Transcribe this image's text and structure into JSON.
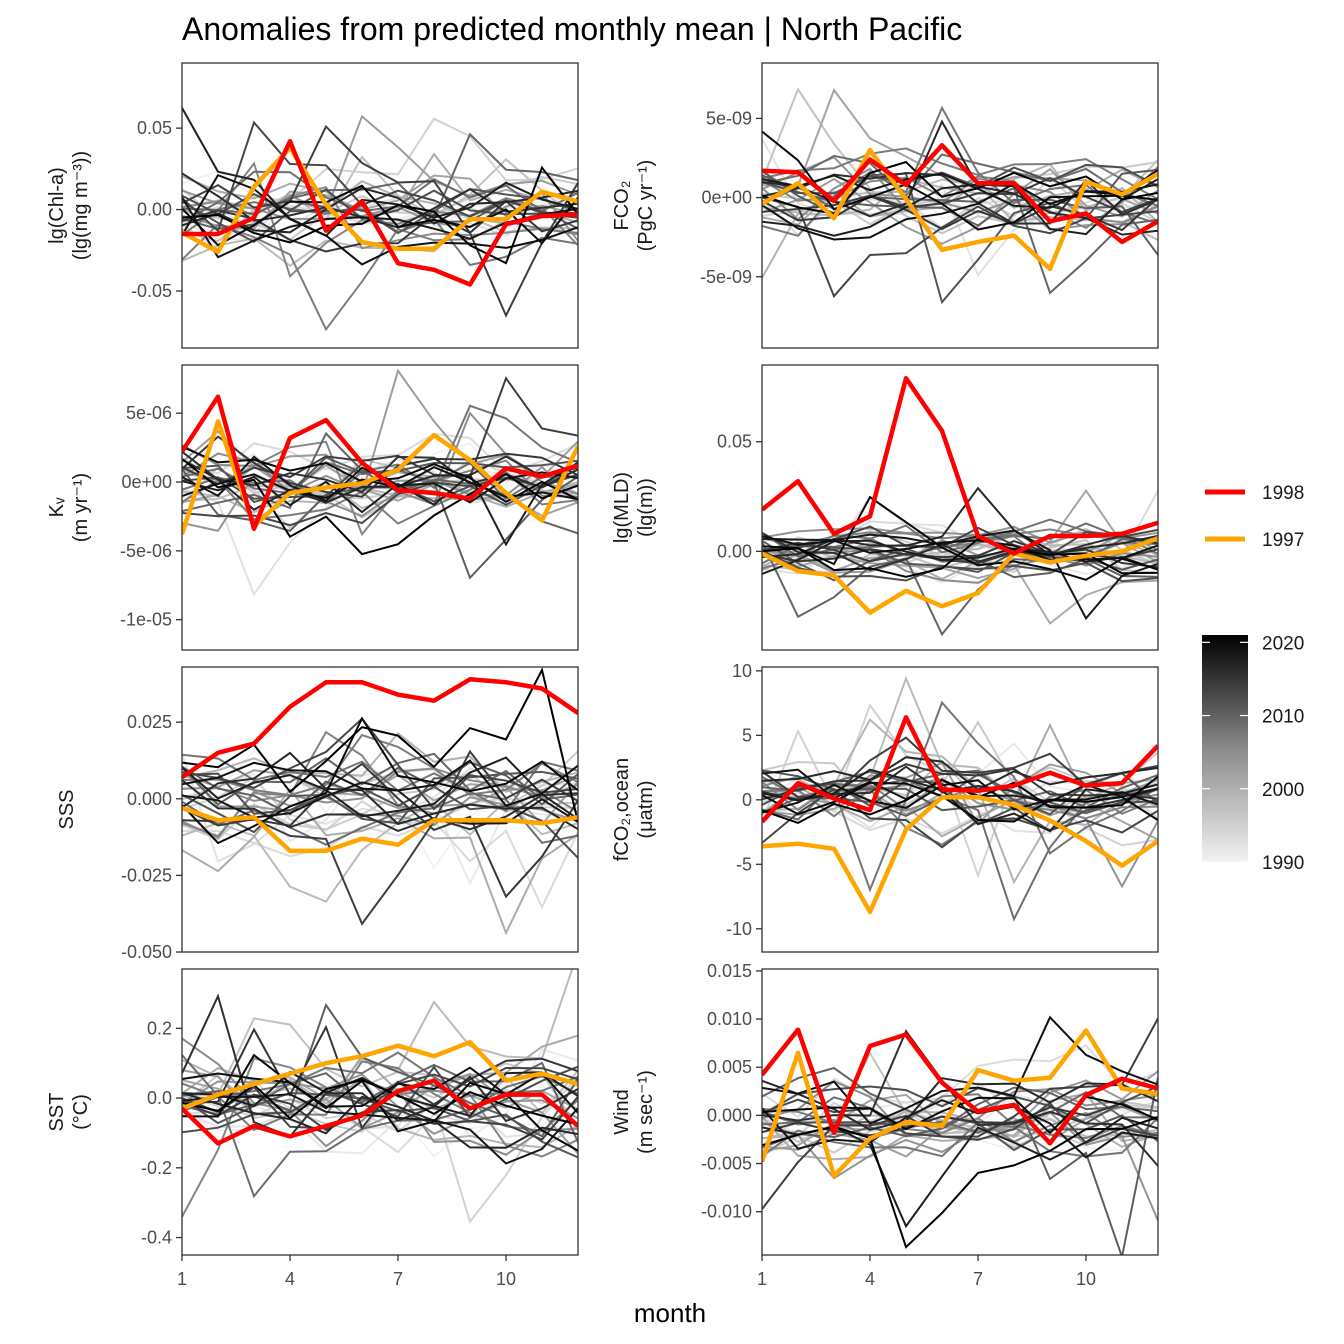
{
  "title": "Anomalies from predicted monthly mean | North Pacific",
  "xlabel": "month",
  "x_ticks": [
    1,
    4,
    7,
    10
  ],
  "legend": {
    "highlight": [
      {
        "label": "1998",
        "color": "#ff0000"
      },
      {
        "label": "1997",
        "color": "#ffa500"
      }
    ],
    "colorbar": {
      "ticks": [
        1990,
        2000,
        2010,
        2020
      ],
      "range": [
        1990,
        2021
      ],
      "colors": [
        "#f2f2f2",
        "#000000"
      ]
    }
  },
  "chart_data": [
    {
      "type": "line",
      "id": "chl",
      "ylabel_lines": [
        "lg(Chl-a)",
        "(lg(mg m⁻³))"
      ],
      "ylim": [
        -0.085,
        0.09
      ],
      "yticks": [
        0.05,
        0.0,
        -0.05
      ],
      "yticklabels": [
        "0.05",
        "0.00",
        "-0.05"
      ],
      "x": [
        1,
        2,
        3,
        4,
        5,
        6,
        7,
        8,
        9,
        10,
        11,
        12
      ],
      "series": [
        {
          "name": "1998",
          "values": [
            -0.015,
            -0.015,
            -0.005,
            0.042,
            -0.013,
            0.005,
            -0.033,
            -0.037,
            -0.046,
            -0.009,
            -0.004,
            -0.003
          ]
        },
        {
          "name": "1997",
          "values": [
            -0.014,
            -0.026,
            0.014,
            0.038,
            0.003,
            -0.02,
            -0.024,
            -0.024,
            -0.006,
            -0.006,
            0.011,
            0.005
          ]
        }
      ],
      "background_amp": 0.02,
      "background_spike": 0.055
    },
    {
      "type": "line",
      "id": "fco2",
      "ylabel_lines": [
        "FCO₂",
        "(PgC yr⁻¹)"
      ],
      "ylim": [
        -9.5e-09,
        8.5e-09
      ],
      "yticks": [
        5e-09,
        0,
        -5e-09
      ],
      "yticklabels": [
        "5e-09",
        "0e+00",
        "-5e-09"
      ],
      "x": [
        1,
        2,
        3,
        4,
        5,
        6,
        7,
        8,
        9,
        10,
        11,
        12
      ],
      "series": [
        {
          "name": "1998",
          "values": [
            1.7e-09,
            1.6e-09,
            -2e-10,
            2.4e-09,
            8e-10,
            3.3e-09,
            9e-10,
            9e-10,
            -1.5e-09,
            -1e-09,
            -2.8e-09,
            -1.5e-09
          ]
        },
        {
          "name": "1997",
          "values": [
            -4e-10,
            9e-10,
            -1.3e-09,
            3e-09,
            -1e-10,
            -3.3e-09,
            -2.8e-09,
            -2.4e-09,
            -4.5e-09,
            1e-09,
            2e-10,
            1.5e-09
          ]
        }
      ],
      "background_amp": 2.2e-09,
      "background_spike": 7e-09
    },
    {
      "type": "line",
      "id": "kw",
      "ylabel_lines": [
        "Kᵥ",
        "(m yr⁻¹)"
      ],
      "ylim": [
        -1.22e-05,
        8.5e-06
      ],
      "yticks": [
        5e-06,
        0,
        -5e-06,
        -1e-05
      ],
      "yticklabels": [
        "5e-06",
        "0e+00",
        "-5e-06",
        "-1e-05"
      ],
      "x": [
        1,
        2,
        3,
        4,
        5,
        6,
        7,
        8,
        9,
        10,
        11,
        12
      ],
      "series": [
        {
          "name": "1998",
          "values": [
            2.2e-06,
            6.2e-06,
            -3.4e-06,
            3.2e-06,
            4.5e-06,
            1.4e-06,
            -6e-07,
            -8e-07,
            -1.2e-06,
            1e-06,
            4e-07,
            1.2e-06
          ]
        },
        {
          "name": "1997",
          "values": [
            -3.8e-06,
            4.4e-06,
            -3.2e-06,
            -8e-07,
            -4e-07,
            -1e-07,
            9e-07,
            3.4e-06,
            1.6e-06,
            -8e-07,
            -2.8e-06,
            2.6e-06
          ]
        }
      ],
      "background_amp": 2.5e-06,
      "background_spike": 7e-06
    },
    {
      "type": "line",
      "id": "mld",
      "ylabel_lines": [
        "lg(MLD)",
        "(lg(m))"
      ],
      "ylim": [
        -0.045,
        0.085
      ],
      "yticks": [
        0.05,
        0.0
      ],
      "yticklabels": [
        "0.05",
        "0.00"
      ],
      "x": [
        1,
        2,
        3,
        4,
        5,
        6,
        7,
        8,
        9,
        10,
        11,
        12
      ],
      "series": [
        {
          "name": "1998",
          "values": [
            0.019,
            0.032,
            0.008,
            0.016,
            0.079,
            0.055,
            0.007,
            -0.001,
            0.007,
            0.007,
            0.008,
            0.013
          ]
        },
        {
          "name": "1997",
          "values": [
            -0.001,
            -0.009,
            -0.011,
            -0.028,
            -0.018,
            -0.025,
            -0.019,
            -0.001,
            -0.005,
            -0.002,
            0,
            0.006
          ]
        }
      ],
      "background_amp": 0.01,
      "background_spike": 0.035
    },
    {
      "type": "line",
      "id": "sss",
      "ylabel_lines": [
        "SSS"
      ],
      "ylim": [
        -0.05,
        0.043
      ],
      "yticks": [
        0.025,
        0.0,
        -0.025,
        -0.05
      ],
      "yticklabels": [
        "0.025",
        "0.000",
        "-0.025",
        "-0.050"
      ],
      "x": [
        1,
        2,
        3,
        4,
        5,
        6,
        7,
        8,
        9,
        10,
        11,
        12
      ],
      "series": [
        {
          "name": "1998",
          "values": [
            0.007,
            0.015,
            0.018,
            0.03,
            0.038,
            0.038,
            0.034,
            0.032,
            0.039,
            0.038,
            0.036,
            0.028
          ]
        },
        {
          "name": "1997",
          "values": [
            -0.003,
            -0.007,
            -0.006,
            -0.017,
            -0.017,
            -0.013,
            -0.015,
            -0.007,
            -0.007,
            -0.007,
            -0.008,
            -0.006
          ]
        }
      ],
      "background_amp": 0.014,
      "background_spike": 0.03
    },
    {
      "type": "line",
      "id": "fco2ocean",
      "ylabel_lines": [
        "fCO₂,ocean",
        "(μatm)"
      ],
      "ylim": [
        -11.8,
        10.3
      ],
      "yticks": [
        10,
        5,
        0,
        -5,
        -10
      ],
      "yticklabels": [
        "10",
        "5",
        "0",
        "-5",
        "-10"
      ],
      "x": [
        1,
        2,
        3,
        4,
        5,
        6,
        7,
        8,
        9,
        10,
        11,
        12
      ],
      "series": [
        {
          "name": "1998",
          "values": [
            -1.7,
            1.3,
            0.1,
            -0.8,
            6.4,
            0.8,
            0.7,
            1.1,
            2.1,
            1.1,
            1.3,
            4.2
          ]
        },
        {
          "name": "1997",
          "values": [
            -3.6,
            -3.4,
            -3.8,
            -8.7,
            -2.3,
            0.2,
            0.2,
            -0.4,
            -1.6,
            -3.2,
            -5.1,
            -3.2
          ]
        }
      ],
      "background_amp": 2.6,
      "background_spike": 8
    },
    {
      "type": "line",
      "id": "sst",
      "ylabel_lines": [
        "SST",
        "(°C)"
      ],
      "ylim": [
        -0.45,
        0.37
      ],
      "yticks": [
        0.2,
        0.0,
        -0.2,
        -0.4
      ],
      "yticklabels": [
        "0.2",
        "0.0",
        "-0.2",
        "-0.4"
      ],
      "x": [
        1,
        2,
        3,
        4,
        5,
        6,
        7,
        8,
        9,
        10,
        11,
        12
      ],
      "series": [
        {
          "name": "1998",
          "values": [
            -0.03,
            -0.13,
            -0.08,
            -0.11,
            -0.08,
            -0.05,
            0.02,
            0.05,
            -0.03,
            0.01,
            0.01,
            -0.08
          ]
        },
        {
          "name": "1997",
          "values": [
            -0.03,
            0.01,
            0.04,
            0.07,
            0.1,
            0.12,
            0.15,
            0.12,
            0.16,
            0.05,
            0.07,
            0.04
          ]
        }
      ],
      "background_amp": 0.13,
      "background_spike": 0.3
    },
    {
      "type": "line",
      "id": "wind",
      "ylabel_lines": [
        "Wind",
        "(m sec⁻¹)"
      ],
      "ylim": [
        -0.0145,
        0.0152
      ],
      "yticks": [
        0.015,
        0.01,
        0.005,
        0.0,
        -0.005,
        -0.01
      ],
      "yticklabels": [
        "0.015",
        "0.010",
        "0.005",
        "0.000",
        "-0.005",
        "-0.010"
      ],
      "x": [
        1,
        2,
        3,
        4,
        5,
        6,
        7,
        8,
        9,
        10,
        11,
        12
      ],
      "series": [
        {
          "name": "1998",
          "values": [
            0.0042,
            0.0089,
            -0.0018,
            0.0072,
            0.0084,
            0.0034,
            0.0004,
            0.0011,
            -0.0029,
            0.0021,
            0.0038,
            0.0028
          ]
        },
        {
          "name": "1997",
          "values": [
            -0.0048,
            0.0065,
            -0.0063,
            -0.0024,
            -0.0007,
            -0.0011,
            0.0047,
            0.0036,
            0.0039,
            0.0088,
            0.0028,
            0.0022
          ]
        }
      ],
      "background_amp": 0.0035,
      "background_spike": 0.012
    }
  ]
}
